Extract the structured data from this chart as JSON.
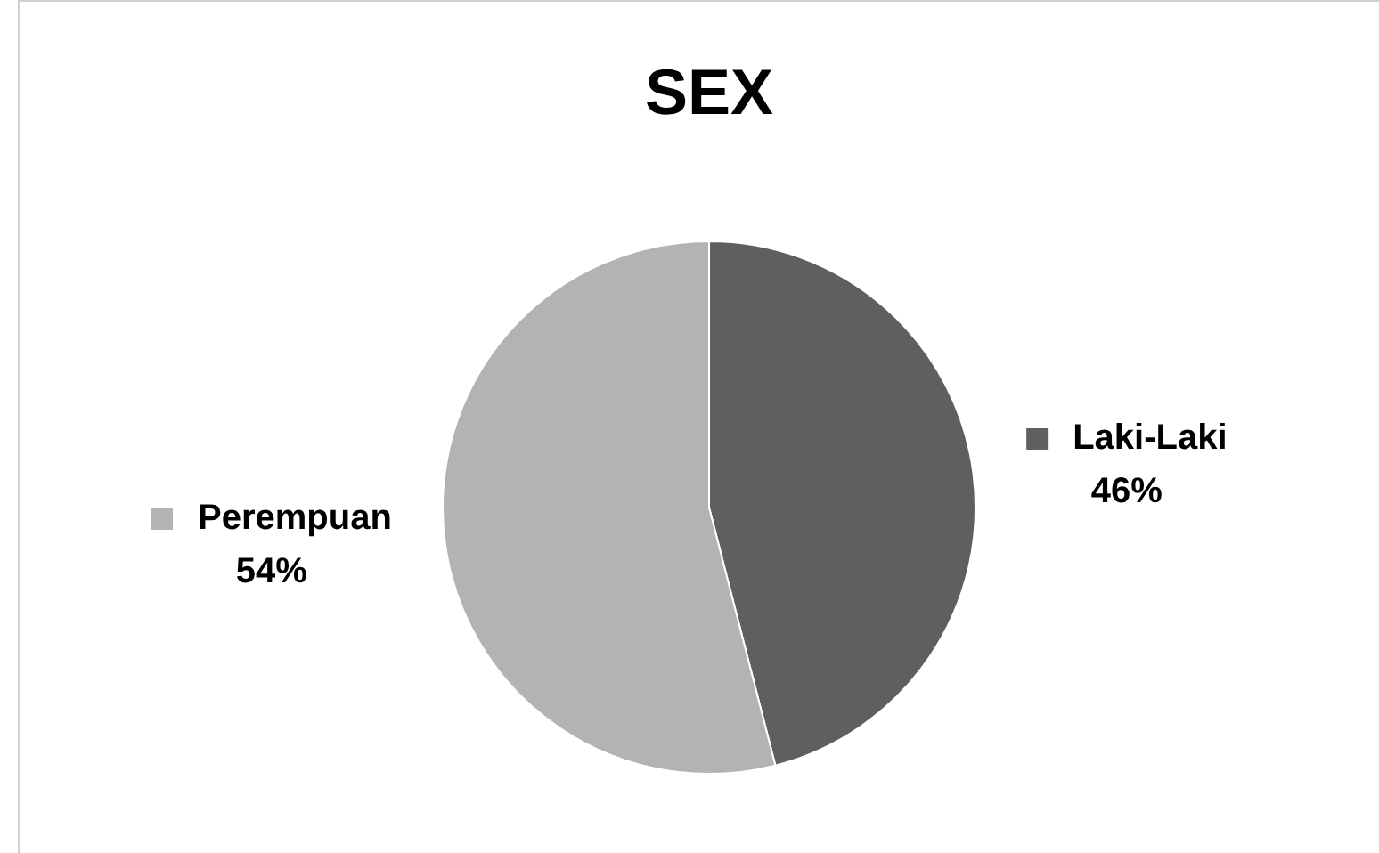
{
  "chart_data": {
    "type": "pie",
    "title": "SEX",
    "categories": [
      "Laki-Laki",
      "Perempuan"
    ],
    "values": [
      46,
      54
    ],
    "value_labels": [
      "46%",
      "54%"
    ],
    "colors": [
      "#5f5f5f",
      "#b3b3b3"
    ],
    "legend": "right"
  }
}
